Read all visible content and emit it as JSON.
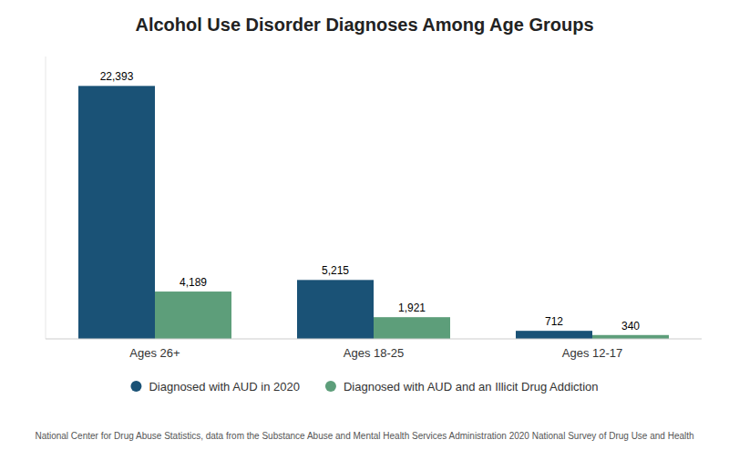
{
  "chart_data": {
    "type": "bar",
    "title": "Alcohol Use Disorder Diagnoses Among Age Groups",
    "categories": [
      "Ages 26+",
      "Ages 18-25",
      "Ages 12-17"
    ],
    "series": [
      {
        "name": "Diagnosed with AUD in 2020",
        "color": "#1a5276",
        "values": [
          22393,
          5215,
          712
        ],
        "value_labels": [
          "22,393",
          "5,215",
          "712"
        ]
      },
      {
        "name": "Diagnosed with AUD and an Illicit Drug Addiction",
        "color": "#5d9e7a",
        "values": [
          4189,
          1921,
          340
        ],
        "value_labels": [
          "4,189",
          "1,921",
          "340"
        ]
      }
    ],
    "ylim": [
      0,
      25000
    ],
    "grid": false,
    "legend": "bottom",
    "data_labels": true,
    "tick_labels": "x",
    "footnote": "National Center for Drug Abuse Statistics, data from the Substance Abuse and Mental Health Services Administration 2020 National Survey of Drug Use and Health"
  }
}
